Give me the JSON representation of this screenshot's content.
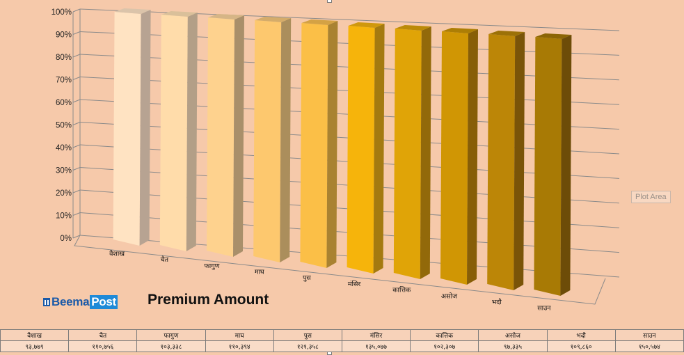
{
  "chart_data": {
    "type": "bar",
    "title": "Premium Amount",
    "categories": [
      "वैशाख",
      "चैत",
      "फागुण",
      "माघ",
      "पुस",
      "मंसिर",
      "कात्तिक",
      "असोज",
      "भदौ",
      "साउन"
    ],
    "values": [
      100,
      100,
      100,
      100,
      100,
      100,
      100,
      100,
      100,
      100
    ],
    "ylim": [
      0,
      100
    ],
    "y_ticks": [
      "0%",
      "10%",
      "20%",
      "30%",
      "40%",
      "50%",
      "60%",
      "70%",
      "80%",
      "90%",
      "100%"
    ],
    "grid": true,
    "colors": [
      "#ffe3c2",
      "#ffdcaa",
      "#fed28e",
      "#fdc86e",
      "#fbbf47",
      "#f6b40b",
      "#e0a407",
      "#d09604",
      "#bc8607",
      "#a87a05"
    ],
    "side_colors": [
      "#b7a392",
      "#b39f87",
      "#a98f6a",
      "#ab8e5c",
      "#a98231",
      "#a47a10",
      "#92690a",
      "#875e07",
      "#7a5408",
      "#6d4c08"
    ],
    "top_colors": [
      "#dbc4aa",
      "#dac09a",
      "#d6b586",
      "#d5ac6a",
      "#d4a244",
      "#d0980c",
      "#bb8a08",
      "#ad7e05",
      "#9c7107",
      "#8c6505"
    ]
  },
  "table": {
    "headers": [
      "वैशाख",
      "चैत",
      "फागुण",
      "माघ",
      "पुस",
      "मंसिर",
      "कात्तिक",
      "असोज",
      "भदौ",
      "साउन"
    ],
    "values": [
      "९३,७७९",
      "११०,७५६",
      "१०३,३३८",
      "११०,३९४",
      "१२१,३५८",
      "१३५,०७७",
      "१०२,३०७",
      "९७,३३५",
      "१०९,८६०",
      "१५०,५७४"
    ]
  },
  "tooltip": "Plot Area",
  "logo": {
    "word1": "Beema",
    "word2": "Post"
  }
}
